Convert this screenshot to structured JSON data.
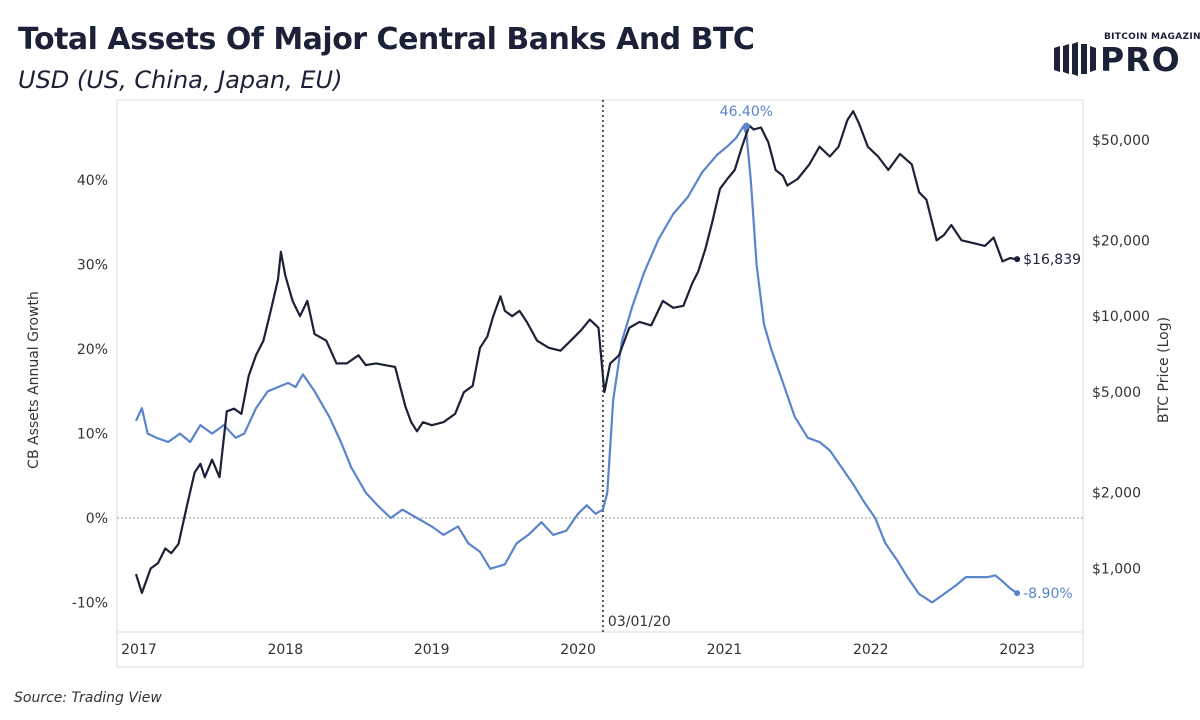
{
  "header": {
    "title": "Total Assets Of Major Central Banks And BTC",
    "subtitle": "USD (US, China, Japan, EU)"
  },
  "logo": {
    "small_text": "BITCOIN MAGAZINE",
    "big_text": "PRO"
  },
  "footer": {
    "source": "Source: Trading View"
  },
  "colors": {
    "cb_series": "#5b84cc",
    "btc_series": "#1b2137",
    "zero_line": "#999999"
  },
  "chart_data": {
    "type": "line",
    "title": "Total Assets Of Major Central Banks And BTC",
    "subtitle": "USD (US, China, Japan, EU)",
    "xlabel": "",
    "x_ticks": [
      "2017",
      "2018",
      "2019",
      "2020",
      "2021",
      "2022",
      "2023"
    ],
    "xlim": [
      2016.85,
      2023.45
    ],
    "y_left": {
      "label": "CB Assets Annual Growth",
      "ticks": [
        "-10%",
        "0%",
        "10%",
        "20%",
        "30%",
        "40%"
      ],
      "tick_values": [
        -10,
        0,
        10,
        20,
        30,
        40
      ],
      "lim": [
        -13.5,
        49.5
      ]
    },
    "y_right": {
      "label": "BTC Price (Log)",
      "scale": "log",
      "ticks": [
        "$1,000",
        "$2,000",
        "$5,000",
        "$10,000",
        "$20,000",
        "$50,000"
      ],
      "tick_values": [
        1000,
        2000,
        5000,
        10000,
        20000,
        50000
      ],
      "lim": [
        560,
        72000
      ]
    },
    "grid": false,
    "reference_lines": [
      {
        "axis": "y_left",
        "value": 0,
        "style": "dotted"
      },
      {
        "axis": "x",
        "value": 2020.17,
        "style": "dotted",
        "label": "03/01/20"
      }
    ],
    "annotations": [
      {
        "series": "CB Assets Annual Growth",
        "x": 2021.15,
        "y": 46.4,
        "text": "46.40%"
      },
      {
        "series": "CB Assets Annual Growth",
        "x": 2023.0,
        "y": -8.9,
        "text": "-8.90%"
      },
      {
        "series": "BTC Price",
        "x": 2023.0,
        "y": 16839,
        "text": "$16,839"
      }
    ],
    "series": [
      {
        "name": "CB Assets Annual Growth",
        "axis": "y_left",
        "color": "#5b84cc",
        "x": [
          2016.98,
          2017.02,
          2017.06,
          2017.12,
          2017.2,
          2017.28,
          2017.35,
          2017.42,
          2017.5,
          2017.58,
          2017.66,
          2017.72,
          2017.8,
          2017.88,
          2017.95,
          2018.02,
          2018.07,
          2018.12,
          2018.2,
          2018.3,
          2018.38,
          2018.45,
          2018.55,
          2018.63,
          2018.72,
          2018.8,
          2018.9,
          2019.0,
          2019.08,
          2019.18,
          2019.25,
          2019.33,
          2019.4,
          2019.5,
          2019.58,
          2019.66,
          2019.75,
          2019.83,
          2019.92,
          2020.0,
          2020.06,
          2020.12,
          2020.17,
          2020.2,
          2020.24,
          2020.3,
          2020.37,
          2020.45,
          2020.55,
          2020.65,
          2020.75,
          2020.85,
          2020.95,
          2021.02,
          2021.08,
          2021.13,
          2021.15,
          2021.18,
          2021.22,
          2021.27,
          2021.32,
          2021.4,
          2021.48,
          2021.57,
          2021.65,
          2021.72,
          2021.8,
          2021.88,
          2021.95,
          2022.03,
          2022.1,
          2022.18,
          2022.25,
          2022.33,
          2022.42,
          2022.5,
          2022.58,
          2022.65,
          2022.72,
          2022.8,
          2022.85,
          2022.9,
          2022.95,
          2023.0
        ],
        "values": [
          11.5,
          13,
          10,
          9.5,
          9,
          10,
          9,
          11,
          10,
          11,
          9.5,
          10,
          13,
          15,
          15.5,
          16,
          15.5,
          17,
          15,
          12,
          9,
          6,
          3,
          1.5,
          0,
          1,
          0,
          -1,
          -2,
          -1,
          -3,
          -4,
          -6,
          -5.5,
          -3,
          -2,
          -0.5,
          -2,
          -1.5,
          0.5,
          1.5,
          0.5,
          1,
          3,
          14,
          21,
          25,
          29,
          33,
          36,
          38,
          41,
          43,
          44,
          45,
          46.4,
          45.5,
          40,
          30,
          23,
          20,
          16,
          12,
          9.5,
          9,
          8,
          6,
          4,
          2,
          0,
          -3,
          -5,
          -7,
          -9,
          -10,
          -9,
          -8,
          -7,
          -7,
          -7,
          -6.8,
          -7.5,
          -8.3,
          -8.9
        ]
      },
      {
        "name": "BTC Price",
        "axis": "y_right",
        "color": "#1b2137",
        "x": [
          2016.98,
          2017.02,
          2017.08,
          2017.13,
          2017.18,
          2017.22,
          2017.27,
          2017.33,
          2017.38,
          2017.42,
          2017.45,
          2017.5,
          2017.55,
          2017.6,
          2017.65,
          2017.7,
          2017.75,
          2017.8,
          2017.85,
          2017.9,
          2017.95,
          2017.97,
          2018.0,
          2018.05,
          2018.1,
          2018.15,
          2018.2,
          2018.28,
          2018.35,
          2018.42,
          2018.5,
          2018.55,
          2018.62,
          2018.68,
          2018.75,
          2018.82,
          2018.86,
          2018.9,
          2018.94,
          2019.0,
          2019.08,
          2019.16,
          2019.22,
          2019.28,
          2019.33,
          2019.38,
          2019.42,
          2019.47,
          2019.5,
          2019.55,
          2019.6,
          2019.65,
          2019.72,
          2019.8,
          2019.88,
          2019.95,
          2020.02,
          2020.08,
          2020.14,
          2020.18,
          2020.22,
          2020.28,
          2020.35,
          2020.42,
          2020.5,
          2020.58,
          2020.65,
          2020.72,
          2020.78,
          2020.82,
          2020.87,
          2020.92,
          2020.97,
          2021.02,
          2021.07,
          2021.12,
          2021.17,
          2021.2,
          2021.25,
          2021.3,
          2021.35,
          2021.4,
          2021.43,
          2021.5,
          2021.58,
          2021.65,
          2021.72,
          2021.78,
          2021.84,
          2021.88,
          2021.92,
          2021.98,
          2022.05,
          2022.12,
          2022.2,
          2022.28,
          2022.33,
          2022.38,
          2022.45,
          2022.5,
          2022.55,
          2022.62,
          2022.7,
          2022.78,
          2022.84,
          2022.9,
          2022.95,
          2023.0
        ],
        "values": [
          950,
          800,
          1000,
          1050,
          1200,
          1150,
          1250,
          1800,
          2400,
          2600,
          2300,
          2700,
          2300,
          4200,
          4300,
          4100,
          5800,
          7000,
          8000,
          10500,
          14000,
          18000,
          14500,
          11500,
          10000,
          11500,
          8500,
          8000,
          6500,
          6500,
          7000,
          6400,
          6500,
          6400,
          6300,
          4400,
          3800,
          3500,
          3800,
          3700,
          3800,
          4100,
          5000,
          5300,
          7500,
          8300,
          10000,
          12000,
          10500,
          10000,
          10500,
          9500,
          8000,
          7500,
          7300,
          8000,
          8800,
          9700,
          9000,
          5000,
          6500,
          7000,
          9000,
          9500,
          9200,
          11500,
          10800,
          11000,
          13500,
          15000,
          18500,
          24000,
          32000,
          35000,
          38000,
          47000,
          57000,
          55000,
          56000,
          49000,
          38000,
          36000,
          33000,
          35000,
          40000,
          47000,
          43000,
          47000,
          60000,
          65000,
          58000,
          47000,
          43000,
          38000,
          44000,
          40000,
          31000,
          29000,
          20000,
          21000,
          23000,
          20000,
          19500,
          19000,
          20500,
          16500,
          17000,
          16839
        ]
      }
    ]
  }
}
